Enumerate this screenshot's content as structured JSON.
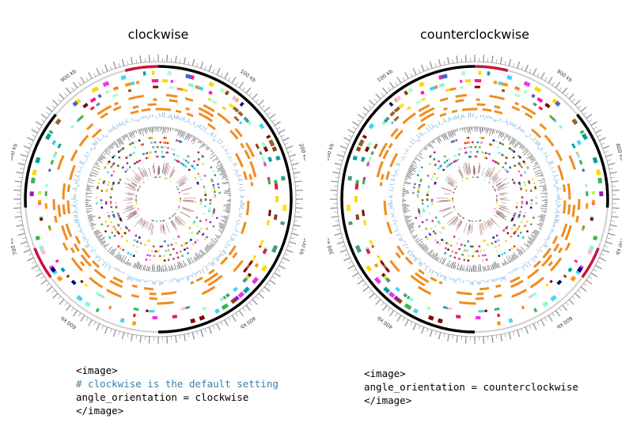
{
  "colors": {
    "ideogram": "#000000",
    "highlight": "#c8143c",
    "orange_track": "#f08c1e",
    "blue_track": "#6aa9e0",
    "histogram": "#555555",
    "inner_labels": "#9a6a6a",
    "comment": "#3a7fa6"
  },
  "panels": [
    {
      "title": "clockwise",
      "orientation": "clockwise",
      "tick_labels": [
        {
          "text": "100 kb",
          "pos": 100
        },
        {
          "text": "200 kb",
          "pos": 200
        },
        {
          "text": "300 kb",
          "pos": 300
        },
        {
          "text": "400 kb",
          "pos": 400
        },
        {
          "text": "500 kb",
          "pos": 500
        },
        {
          "text": "600 kb",
          "pos": 600
        },
        {
          "text": "700 kb",
          "pos": 700
        },
        {
          "text": "800 kb",
          "pos": 800
        },
        {
          "text": "900 kb",
          "pos": 900
        }
      ],
      "code": {
        "open_tag": "<image>",
        "comment": "# clockwise is the default setting",
        "setting": "angle_orientation = clockwise",
        "close_tag": "</image>"
      }
    },
    {
      "title": "counterclockwise",
      "orientation": "counterclockwise",
      "tick_labels": [
        {
          "text": "100 kb",
          "pos": 100
        },
        {
          "text": "200 kb",
          "pos": 200
        },
        {
          "text": "300 kb",
          "pos": 300
        },
        {
          "text": "400 kb",
          "pos": 400
        },
        {
          "text": "500 kb",
          "pos": 500
        },
        {
          "text": "600 kb",
          "pos": 600
        },
        {
          "text": "700 kb",
          "pos": 700
        },
        {
          "text": "800 kb",
          "pos": 800
        },
        {
          "text": "900 kb",
          "pos": 900
        }
      ],
      "code": {
        "open_tag": "<image>",
        "setting": "angle_orientation = counterclockwise",
        "close_tag": "</image>"
      }
    }
  ]
}
